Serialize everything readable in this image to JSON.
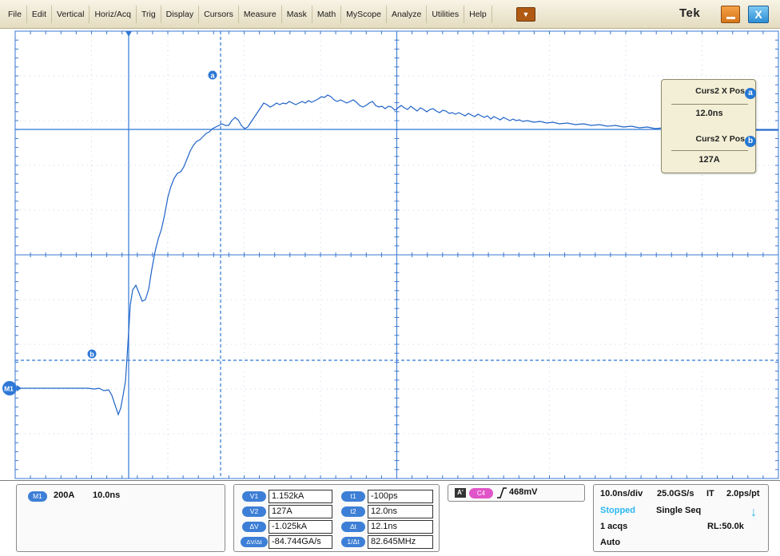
{
  "menu": {
    "items": [
      "File",
      "Edit",
      "Vertical",
      "Horiz/Acq",
      "Trig",
      "Display",
      "Cursors",
      "Measure",
      "Mask",
      "Math",
      "MyScope",
      "Analyze",
      "Utilities",
      "Help"
    ],
    "dropdown_icon": "down-triangle-icon",
    "logo": "Tek",
    "minimize_icon": "minimize-icon",
    "close_icon": "close-icon",
    "close_glyph": "X"
  },
  "cursor_readout": {
    "x_label": "Curs2 X Pos",
    "x_badge": "a",
    "x_value": "12.0ns",
    "y_label": "Curs2 Y Pos",
    "y_badge": "b",
    "y_value": "127A"
  },
  "markers": {
    "cursor_a": "a",
    "cursor_b": "b",
    "m1": "M1"
  },
  "math_info": {
    "chip": "M1",
    "scale": "200A",
    "timebase": "10.0ns"
  },
  "cursor_table": {
    "v_labels": [
      "V1",
      "V2",
      "ΔV",
      "ΔV/Δt"
    ],
    "v_values": [
      "1.152kA",
      "127A",
      "-1.025kA",
      "-84.744GA/s"
    ],
    "t_labels": [
      "t1",
      "t2",
      "Δt",
      "1/Δt"
    ],
    "t_values": [
      "-100ps",
      "12.0ns",
      "12.1ns",
      "82.645MHz"
    ]
  },
  "trigger": {
    "mode_chip": "A'",
    "source_chip": "C4",
    "slope_icon": "rising-edge-icon",
    "level": "468mV"
  },
  "acquisition": {
    "horiz": "10.0ns/div",
    "sample_rate": "25.0GS/s",
    "mode": "IT",
    "resolution": "2.0ps/pt",
    "state": "Stopped",
    "seq": "Single Seq",
    "acqs": "1 acqs",
    "record_length": "RL:50.0k",
    "trigger_mode": "Auto",
    "arrow_icon": "down-arrow-icon"
  },
  "colors": {
    "trace": "#1f63c7",
    "graticule": "#3a77d0",
    "cursor": "#2f78d6",
    "stopped": "#29b7f0",
    "c4_chip": "#e055c8"
  }
}
